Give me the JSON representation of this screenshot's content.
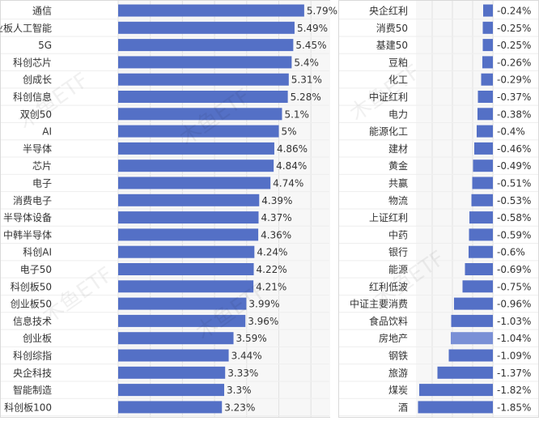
{
  "chart_data": [
    {
      "type": "bar",
      "orientation": "horizontal",
      "categories": [
        "通信",
        "创业板人工智能",
        "5G",
        "科创芯片",
        "创成长",
        "科创信息",
        "双创50",
        "AI",
        "半导体",
        "芯片",
        "电子",
        "消费电子",
        "半导体设备",
        "中韩半导体",
        "科创AI",
        "电子50",
        "科创板50",
        "创业板50",
        "信息技术",
        "创业板",
        "科创综指",
        "央企科技",
        "智能制造",
        "科创板100"
      ],
      "values": [
        5.79,
        5.49,
        5.45,
        5.4,
        5.31,
        5.28,
        5.1,
        5,
        4.86,
        4.84,
        4.74,
        4.39,
        4.37,
        4.36,
        4.24,
        4.22,
        4.21,
        3.99,
        3.96,
        3.59,
        3.44,
        3.33,
        3.3,
        3.23
      ],
      "value_labels": [
        "5.79%",
        "5.49%",
        "5.45%",
        "5.4%",
        "5.31%",
        "5.28%",
        "5.1%",
        "5%",
        "4.86%",
        "4.84%",
        "4.74%",
        "4.39%",
        "4.37%",
        "4.36%",
        "4.24%",
        "4.22%",
        "4.21%",
        "3.99%",
        "3.96%",
        "3.59%",
        "3.44%",
        "3.33%",
        "3.3%",
        "3.23%"
      ],
      "xlim": [
        0,
        8
      ],
      "bar_color": "#5470c6",
      "grid": true
    },
    {
      "type": "bar",
      "orientation": "horizontal",
      "categories": [
        "央企红利",
        "消费50",
        "基建50",
        "豆粕",
        "化工",
        "中证红利",
        "电力",
        "能源化工",
        "建材",
        "黄金",
        "共赢",
        "物流",
        "上证红利",
        "中药",
        "银行",
        "能源",
        "红利低波",
        "中证主要消费",
        "食品饮料",
        "房地产",
        "钢铁",
        "旅游",
        "煤炭",
        "酒"
      ],
      "values": [
        -0.24,
        -0.25,
        -0.25,
        -0.26,
        -0.29,
        -0.37,
        -0.38,
        -0.4,
        -0.46,
        -0.49,
        -0.51,
        -0.53,
        -0.58,
        -0.59,
        -0.6,
        -0.69,
        -0.75,
        -0.96,
        -1.03,
        -1.04,
        -1.09,
        -1.37,
        -1.82,
        -1.85
      ],
      "value_labels": [
        "-0.24%",
        "-0.25%",
        "-0.25%",
        "-0.26%",
        "-0.29%",
        "-0.37%",
        "-0.38%",
        "-0.4%",
        "-0.46%",
        "-0.49%",
        "-0.51%",
        "-0.53%",
        "-0.58%",
        "-0.59%",
        "-0.6%",
        "-0.69%",
        "-0.75%",
        "-0.96%",
        "-1.03%",
        "-1.04%",
        "-1.09%",
        "-1.37%",
        "-1.82%",
        "-1.85%"
      ],
      "xlim": [
        -2.0,
        0
      ],
      "bar_color": "#5470c6",
      "highlight_index": 19,
      "highlight_color": "#7a90d6",
      "grid": true
    }
  ],
  "watermark": "木鱼ETF"
}
